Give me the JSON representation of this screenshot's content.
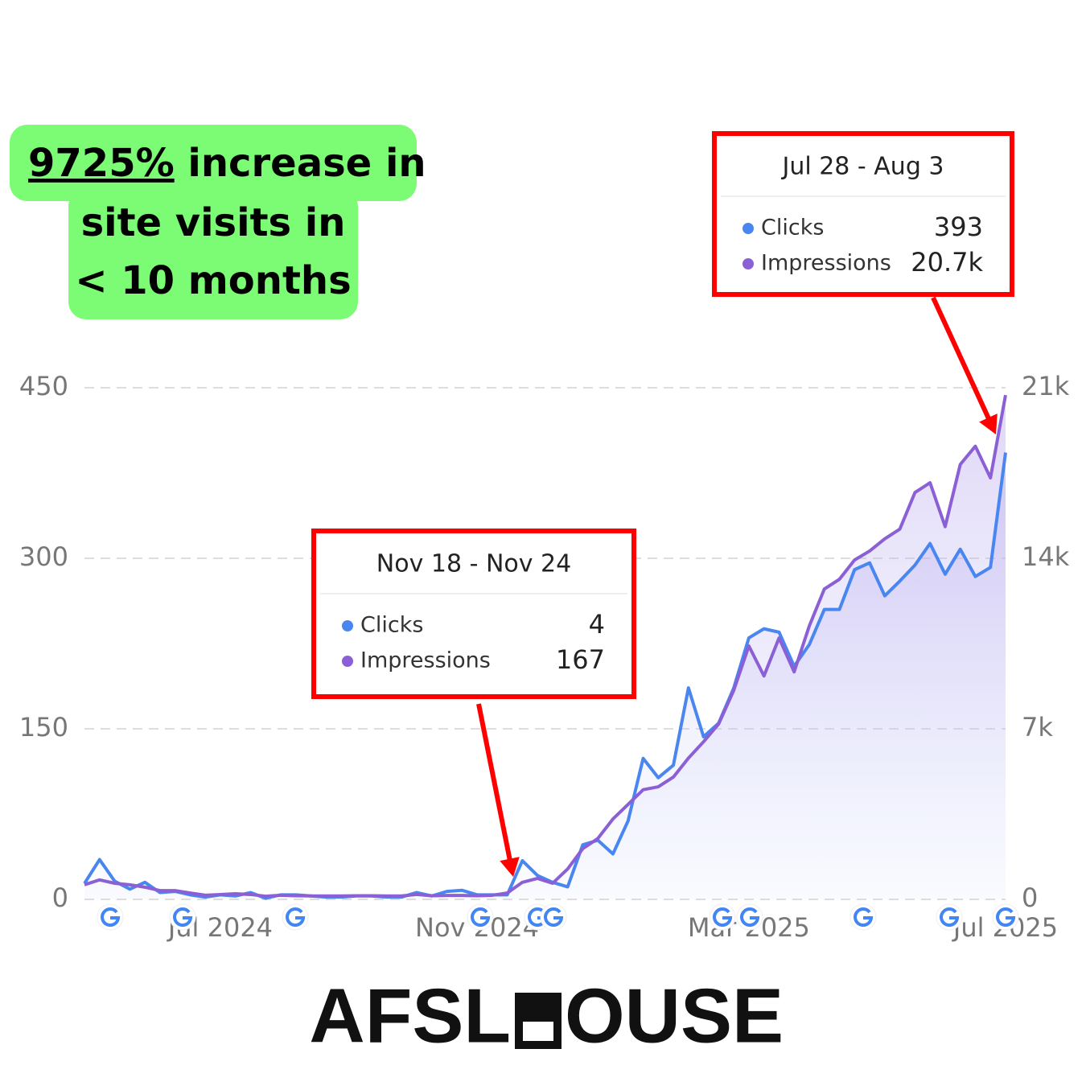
{
  "headline": {
    "highlight": "9725%",
    "lines": [
      "increase in",
      "site visits in",
      "< 10 months"
    ]
  },
  "brand": [
    "AFSL",
    "OUSE"
  ],
  "chart_data": {
    "type": "line",
    "categories": [
      null,
      null,
      null,
      null,
      null,
      null,
      null,
      null,
      null,
      "Jul 2024",
      null,
      null,
      null,
      null,
      null,
      null,
      null,
      null,
      null,
      null,
      null,
      null,
      null,
      null,
      null,
      null,
      "Nov 2024",
      null,
      null,
      null,
      null,
      null,
      null,
      null,
      null,
      null,
      null,
      null,
      null,
      null,
      null,
      null,
      null,
      null,
      "Mar 2025",
      null,
      null,
      null,
      null,
      null,
      null,
      null,
      null,
      null,
      null,
      null,
      null,
      null,
      null,
      null,
      null,
      "Jul 2025"
    ],
    "series": [
      {
        "name": "Clicks",
        "color": "#4a86f0",
        "axis": "y",
        "values": [
          14,
          35,
          16,
          9,
          15,
          6,
          7,
          4,
          2,
          4,
          3,
          6,
          1,
          4,
          4,
          3,
          2,
          2,
          3,
          3,
          2,
          2,
          6,
          3,
          7,
          8,
          4,
          4,
          4,
          34,
          21,
          15,
          11,
          48,
          52,
          40,
          69,
          124,
          107,
          118,
          186,
          143,
          155,
          186,
          230,
          238,
          235,
          205,
          224,
          255,
          255,
          290,
          296,
          267,
          280,
          294,
          313,
          286,
          308,
          284,
          292,
          393
        ]
      },
      {
        "name": "Impressions",
        "color": "#8b5fd6",
        "axis": "y2",
        "values": [
          600,
          800,
          660,
          600,
          500,
          360,
          360,
          260,
          170,
          200,
          230,
          200,
          130,
          170,
          150,
          140,
          140,
          140,
          150,
          150,
          140,
          140,
          200,
          150,
          160,
          160,
          150,
          167,
          260,
          700,
          860,
          660,
          1250,
          2080,
          2500,
          3300,
          3900,
          4500,
          4620,
          5020,
          5800,
          6470,
          7200,
          8580,
          10400,
          9170,
          10730,
          9340,
          11220,
          12740,
          13140,
          13930,
          14300,
          14800,
          15200,
          16700,
          17100,
          15300,
          17850,
          18600,
          17300,
          20700
        ]
      }
    ],
    "ylim": [
      0,
      450
    ],
    "yticks": [
      0,
      150,
      300,
      450
    ],
    "y2lim": [
      0,
      21000
    ],
    "y2ticks": [
      0,
      {
        "value": 7000,
        "label": "7k"
      },
      {
        "value": 14000,
        "label": "14k"
      },
      {
        "value": 21000,
        "label": "21k"
      }
    ],
    "grid": true,
    "annotations": [
      {
        "text": "Nov 18 - Nov 24",
        "clicks": 4,
        "impressions": 167
      },
      {
        "text": "Jul 28 - Aug 3",
        "clicks": 393,
        "impressions": {
          "value": 20700,
          "label": "20.7k"
        }
      }
    ]
  }
}
